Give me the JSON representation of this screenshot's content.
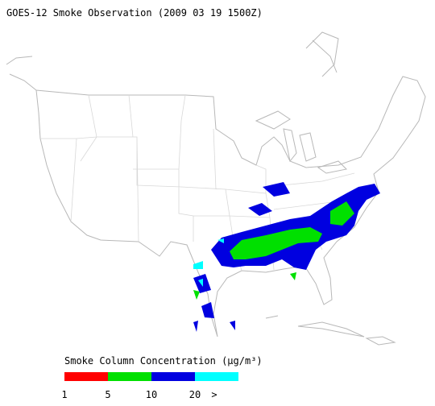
{
  "title": "GOES-12 Smoke Observation (2009 03 19  1500Z)",
  "colorbar": {
    "label": "Smoke Column Concentration (μg/m³)",
    "colors": [
      "#ff0000",
      "#00e000",
      "#0000e0",
      "#00ffff"
    ],
    "ticks": [
      1,
      5,
      10,
      20
    ],
    "overflow_label": ">"
  }
}
